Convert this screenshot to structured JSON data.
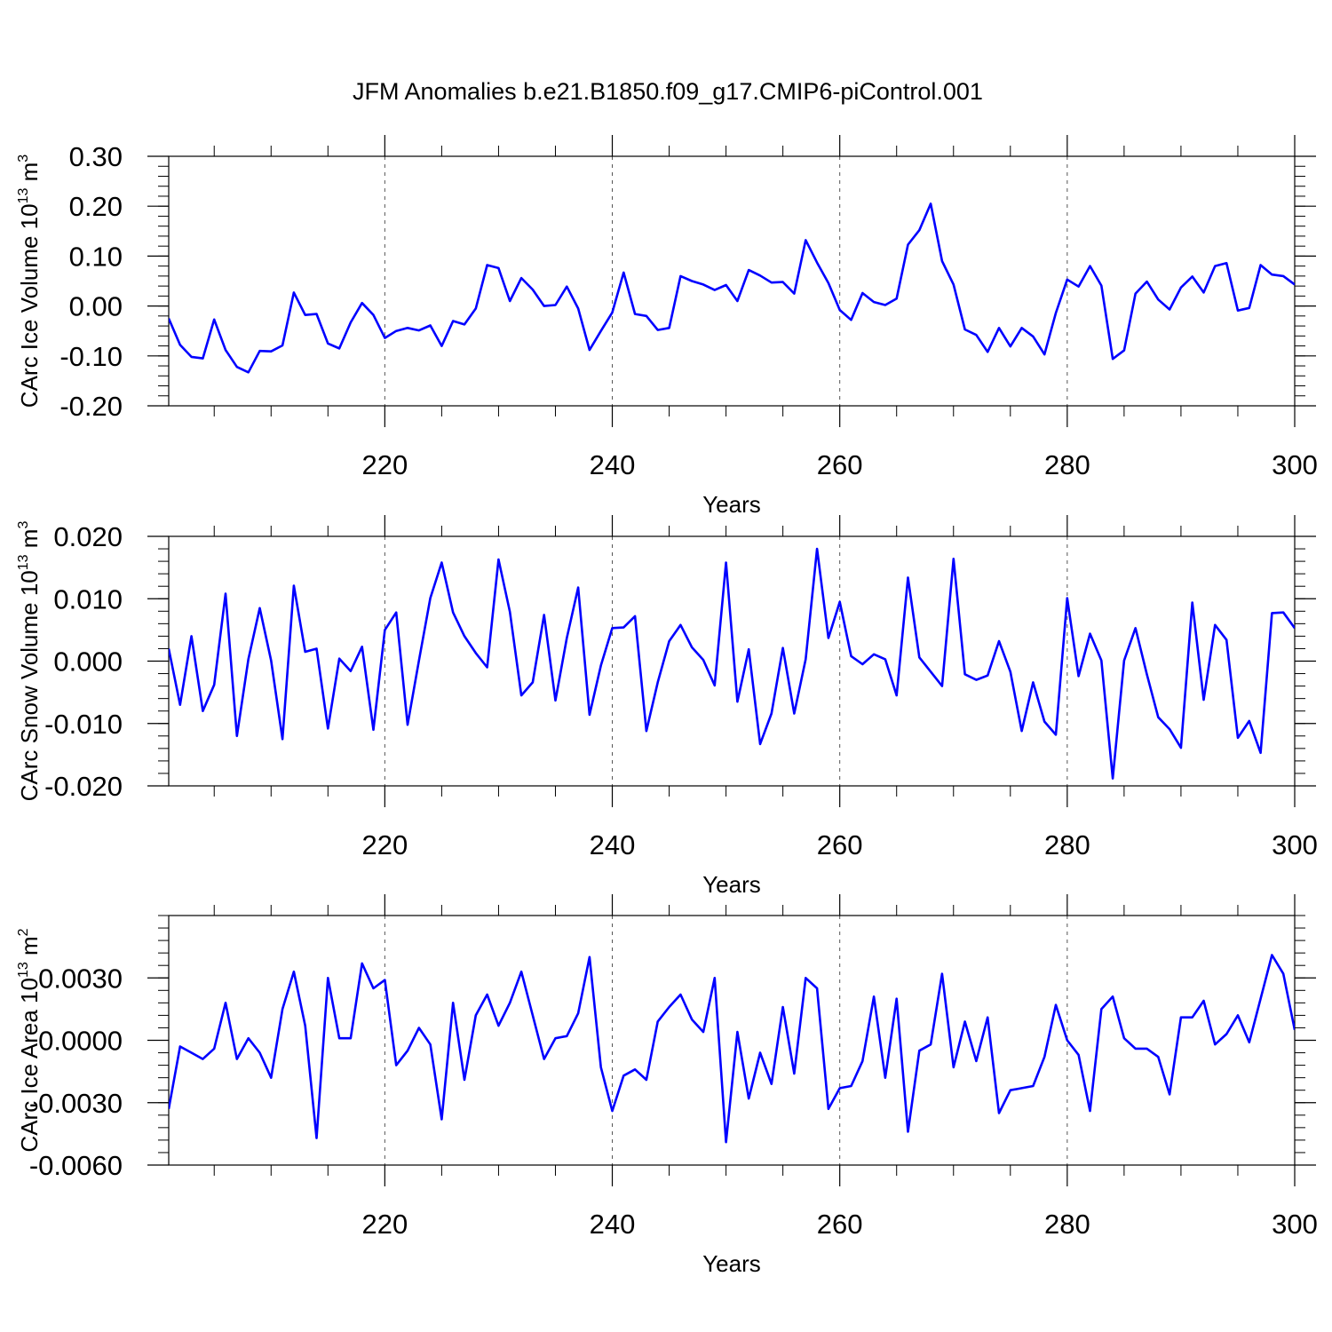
{
  "title": "JFM Anomalies b.e21.B1850.f09_g17.CMIP6-piControl.001",
  "colors": {
    "line": "#0000ff",
    "axis": "#000000",
    "grid": "#555555"
  },
  "chart_data": [
    {
      "type": "line",
      "ylabel": "CArc Ice Volume 10",
      "ylabel_exp": "13",
      "ylabel_unit": " m",
      "ylabel_unit_exp": "3",
      "xlabel": "Years",
      "xlim": [
        201,
        300
      ],
      "ylim": [
        -0.2,
        0.3
      ],
      "yticks": [
        -0.2,
        -0.1,
        0.0,
        0.1,
        0.2,
        0.3
      ],
      "ytick_labels": [
        "-0.20",
        "-0.10",
        "0.00",
        "0.10",
        "0.20",
        "0.30"
      ],
      "xticks": [
        220,
        240,
        260,
        280,
        300
      ],
      "xtick_labels": [
        "220",
        "240",
        "260",
        "280",
        "300"
      ],
      "x": [
        201,
        202,
        203,
        204,
        205,
        206,
        207,
        208,
        209,
        210,
        211,
        212,
        213,
        214,
        215,
        216,
        217,
        218,
        219,
        220,
        221,
        222,
        223,
        224,
        225,
        226,
        227,
        228,
        229,
        230,
        231,
        232,
        233,
        234,
        235,
        236,
        237,
        238,
        239,
        240,
        241,
        242,
        243,
        244,
        245,
        246,
        247,
        248,
        249,
        250,
        251,
        252,
        253,
        254,
        255,
        256,
        257,
        258,
        259,
        260,
        261,
        262,
        263,
        264,
        265,
        266,
        267,
        268,
        269,
        270,
        271,
        272,
        273,
        274,
        275,
        276,
        277,
        278,
        279,
        280,
        281,
        282,
        283,
        284,
        285,
        286,
        287,
        288,
        289,
        290,
        291,
        292,
        293,
        294,
        295,
        296,
        297,
        298,
        299,
        300
      ],
      "values": [
        -0.025,
        -0.078,
        -0.102,
        -0.105,
        -0.027,
        -0.088,
        -0.122,
        -0.133,
        -0.09,
        -0.091,
        -0.079,
        0.027,
        -0.018,
        -0.016,
        -0.075,
        -0.085,
        -0.033,
        0.006,
        -0.018,
        -0.064,
        -0.05,
        -0.044,
        -0.049,
        -0.039,
        -0.08,
        -0.03,
        -0.037,
        -0.005,
        0.082,
        0.076,
        0.01,
        0.056,
        0.033,
        0.0,
        0.002,
        0.039,
        -0.005,
        -0.088,
        -0.05,
        -0.013,
        0.067,
        -0.016,
        -0.02,
        -0.048,
        -0.044,
        0.06,
        0.05,
        0.043,
        0.032,
        0.042,
        0.01,
        0.072,
        0.061,
        0.047,
        0.048,
        0.025,
        0.132,
        0.087,
        0.046,
        -0.008,
        -0.028,
        0.026,
        0.008,
        0.002,
        0.015,
        0.123,
        0.152,
        0.205,
        0.09,
        0.043,
        -0.047,
        -0.058,
        -0.092,
        -0.044,
        -0.081,
        -0.044,
        -0.061,
        -0.097,
        -0.014,
        0.053,
        0.039,
        0.08,
        0.041,
        -0.106,
        -0.089,
        0.025,
        0.049,
        0.013,
        -0.007,
        0.037,
        0.059,
        0.027,
        0.08,
        0.086,
        -0.009,
        -0.004,
        0.082,
        0.063,
        0.06,
        0.043
      ]
    },
    {
      "type": "line",
      "ylabel": "CArc Snow Volume 10",
      "ylabel_exp": "13",
      "ylabel_unit": " m",
      "ylabel_unit_exp": "3",
      "xlabel": "Years",
      "xlim": [
        201,
        300
      ],
      "ylim": [
        -0.02,
        0.02
      ],
      "yticks": [
        -0.02,
        -0.01,
        0.0,
        0.01,
        0.02
      ],
      "ytick_labels": [
        "-0.020",
        "-0.010",
        "0.000",
        "0.010",
        "0.020"
      ],
      "xticks": [
        220,
        240,
        260,
        280,
        300
      ],
      "xtick_labels": [
        "220",
        "240",
        "260",
        "280",
        "300"
      ],
      "x": [
        201,
        202,
        203,
        204,
        205,
        206,
        207,
        208,
        209,
        210,
        211,
        212,
        213,
        214,
        215,
        216,
        217,
        218,
        219,
        220,
        221,
        222,
        223,
        224,
        225,
        226,
        227,
        228,
        229,
        230,
        231,
        232,
        233,
        234,
        235,
        236,
        237,
        238,
        239,
        240,
        241,
        242,
        243,
        244,
        245,
        246,
        247,
        248,
        249,
        250,
        251,
        252,
        253,
        254,
        255,
        256,
        257,
        258,
        259,
        260,
        261,
        262,
        263,
        264,
        265,
        266,
        267,
        268,
        269,
        270,
        271,
        272,
        273,
        274,
        275,
        276,
        277,
        278,
        279,
        280,
        281,
        282,
        283,
        284,
        285,
        286,
        287,
        288,
        289,
        290,
        291,
        292,
        293,
        294,
        295,
        296,
        297,
        298,
        299,
        300
      ],
      "values": [
        0.002,
        -0.007,
        0.004,
        -0.008,
        -0.0038,
        0.0108,
        -0.012,
        0.0003,
        0.0085,
        0.0001,
        -0.0125,
        0.0121,
        0.0015,
        0.002,
        -0.0108,
        0.0004,
        -0.0016,
        0.0023,
        -0.011,
        0.005,
        0.0078,
        -0.0102,
        0.0001,
        0.0101,
        0.0158,
        0.0078,
        0.004,
        0.0013,
        -0.001,
        0.0163,
        0.0079,
        -0.0055,
        -0.0034,
        0.0074,
        -0.0063,
        0.0037,
        0.0118,
        -0.0086,
        -0.0007,
        0.0053,
        0.0054,
        0.0072,
        -0.0112,
        -0.0034,
        0.0032,
        0.0058,
        0.0022,
        0.0002,
        -0.0039,
        0.0158,
        -0.0065,
        0.0019,
        -0.0133,
        -0.0084,
        0.0021,
        -0.0084,
        0.0003,
        0.018,
        0.0037,
        0.0095,
        0.0008,
        -0.0005,
        0.0011,
        0.0003,
        -0.0055,
        0.0134,
        0.0006,
        -0.0017,
        -0.004,
        0.0164,
        -0.0021,
        -0.003,
        -0.0023,
        0.0032,
        -0.0017,
        -0.0112,
        -0.0034,
        -0.0097,
        -0.0118,
        0.0101,
        -0.0024,
        0.0044,
        0.0001,
        -0.0188,
        0.0001,
        0.0053,
        -0.0021,
        -0.009,
        -0.0109,
        -0.0139,
        0.0094,
        -0.0062,
        0.0058,
        0.0034,
        -0.0123,
        -0.0096,
        -0.0147,
        0.0077,
        0.0078,
        0.0053
      ]
    },
    {
      "type": "line",
      "ylabel": "CArc Ice Area 10",
      "ylabel_exp": "13",
      "ylabel_unit": " m",
      "ylabel_unit_exp": "2",
      "xlabel": "Years",
      "xlim": [
        201,
        300
      ],
      "ylim": [
        -0.006,
        0.006
      ],
      "yticks": [
        -0.006,
        -0.003,
        0.0,
        0.003
      ],
      "ytick_labels": [
        "-0.0060",
        "-0.0030",
        "0.0000",
        "0.0030"
      ],
      "xticks": [
        220,
        240,
        260,
        280,
        300
      ],
      "xtick_labels": [
        "220",
        "240",
        "260",
        "280",
        "300"
      ],
      "x": [
        201,
        202,
        203,
        204,
        205,
        206,
        207,
        208,
        209,
        210,
        211,
        212,
        213,
        214,
        215,
        216,
        217,
        218,
        219,
        220,
        221,
        222,
        223,
        224,
        225,
        226,
        227,
        228,
        229,
        230,
        231,
        232,
        233,
        234,
        235,
        236,
        237,
        238,
        239,
        240,
        241,
        242,
        243,
        244,
        245,
        246,
        247,
        248,
        249,
        250,
        251,
        252,
        253,
        254,
        255,
        256,
        257,
        258,
        259,
        260,
        261,
        262,
        263,
        264,
        265,
        266,
        267,
        268,
        269,
        270,
        271,
        272,
        273,
        274,
        275,
        276,
        277,
        278,
        279,
        280,
        281,
        282,
        283,
        284,
        285,
        286,
        287,
        288,
        289,
        290,
        291,
        292,
        293,
        294,
        295,
        296,
        297,
        298,
        299,
        300
      ],
      "values": [
        -0.0033,
        -0.0003,
        -0.0006,
        -0.0009,
        -0.0004,
        0.0018,
        -0.0009,
        0.0001,
        -0.0006,
        -0.0018,
        0.0015,
        0.0033,
        0.0007,
        -0.0047,
        0.003,
        0.0001,
        0.0001,
        0.0037,
        0.0025,
        0.0029,
        -0.0012,
        -0.0005,
        0.0006,
        -0.0002,
        -0.0038,
        0.0018,
        -0.0019,
        0.0012,
        0.0022,
        0.0007,
        0.0018,
        0.0033,
        0.0012,
        -0.0009,
        0.0001,
        0.0002,
        0.0013,
        0.004,
        -0.0013,
        -0.0034,
        -0.0017,
        -0.0014,
        -0.0019,
        0.0009,
        0.0016,
        0.0022,
        0.001,
        0.0004,
        0.003,
        -0.0049,
        0.0004,
        -0.0028,
        -0.0006,
        -0.0021,
        0.0016,
        -0.0016,
        0.003,
        0.0025,
        -0.0033,
        -0.0023,
        -0.0022,
        -0.001,
        0.0021,
        -0.0018,
        0.002,
        -0.0044,
        -0.0005,
        -0.0002,
        0.0032,
        -0.0013,
        0.0009,
        -0.001,
        0.0011,
        -0.0035,
        -0.0024,
        -0.0023,
        -0.0022,
        -0.0008,
        0.0017,
        0.0,
        -0.0007,
        -0.0034,
        0.0015,
        0.0021,
        0.0001,
        -0.0004,
        -0.0004,
        -0.0008,
        -0.0026,
        0.0011,
        0.0011,
        0.0019,
        -0.0002,
        0.0003,
        0.0012,
        -0.0001,
        0.002,
        0.0041,
        0.0032,
        0.0005
      ]
    }
  ]
}
